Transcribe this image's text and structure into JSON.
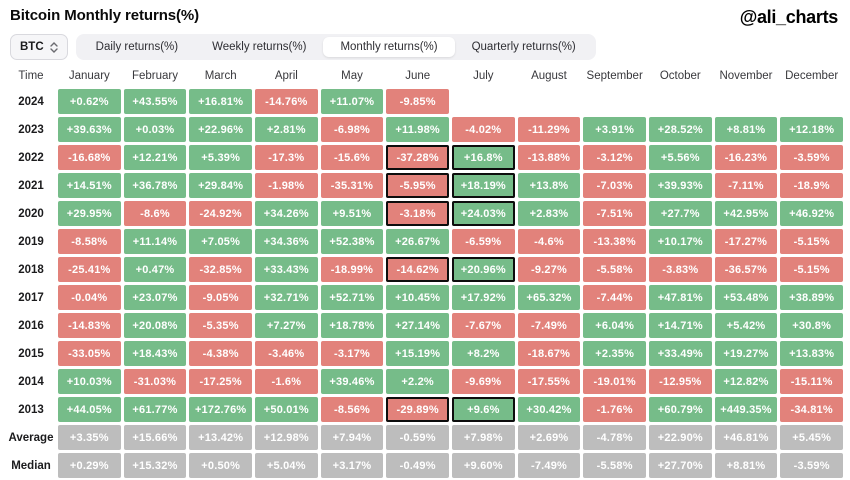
{
  "header": {
    "title": "Bitcoin Monthly returns(%)",
    "handle": "@ali_charts"
  },
  "controls": {
    "asset_selector": {
      "label": "BTC"
    },
    "tabs": [
      {
        "label": "Daily returns(%)",
        "active": false
      },
      {
        "label": "Weekly returns(%)",
        "active": false
      },
      {
        "label": "Monthly returns(%)",
        "active": true
      },
      {
        "label": "Quarterly returns(%)",
        "active": false
      }
    ]
  },
  "chart_data": {
    "type": "heatmap",
    "title": "Bitcoin Monthly returns(%)",
    "columns": [
      "Time",
      "January",
      "February",
      "March",
      "April",
      "May",
      "June",
      "July",
      "August",
      "September",
      "October",
      "November",
      "December"
    ],
    "rows": [
      {
        "label": "2024",
        "kind": "year",
        "values": [
          "+0.62%",
          "+43.55%",
          "+16.81%",
          "-14.76%",
          "+11.07%",
          "-9.85%",
          "",
          "",
          "",
          "",
          "",
          ""
        ]
      },
      {
        "label": "2023",
        "kind": "year",
        "values": [
          "+39.63%",
          "+0.03%",
          "+22.96%",
          "+2.81%",
          "-6.98%",
          "+11.98%",
          "-4.02%",
          "-11.29%",
          "+3.91%",
          "+28.52%",
          "+8.81%",
          "+12.18%"
        ]
      },
      {
        "label": "2022",
        "kind": "year",
        "values": [
          "-16.68%",
          "+12.21%",
          "+5.39%",
          "-17.3%",
          "-15.6%",
          "-37.28%",
          "+16.8%",
          "-13.88%",
          "-3.12%",
          "+5.56%",
          "-16.23%",
          "-3.59%"
        ]
      },
      {
        "label": "2021",
        "kind": "year",
        "values": [
          "+14.51%",
          "+36.78%",
          "+29.84%",
          "-1.98%",
          "-35.31%",
          "-5.95%",
          "+18.19%",
          "+13.8%",
          "-7.03%",
          "+39.93%",
          "-7.11%",
          "-18.9%"
        ]
      },
      {
        "label": "2020",
        "kind": "year",
        "values": [
          "+29.95%",
          "-8.6%",
          "-24.92%",
          "+34.26%",
          "+9.51%",
          "-3.18%",
          "+24.03%",
          "+2.83%",
          "-7.51%",
          "+27.7%",
          "+42.95%",
          "+46.92%"
        ]
      },
      {
        "label": "2019",
        "kind": "year",
        "values": [
          "-8.58%",
          "+11.14%",
          "+7.05%",
          "+34.36%",
          "+52.38%",
          "+26.67%",
          "-6.59%",
          "-4.6%",
          "-13.38%",
          "+10.17%",
          "-17.27%",
          "-5.15%"
        ]
      },
      {
        "label": "2018",
        "kind": "year",
        "values": [
          "-25.41%",
          "+0.47%",
          "-32.85%",
          "+33.43%",
          "-18.99%",
          "-14.62%",
          "+20.96%",
          "-9.27%",
          "-5.58%",
          "-3.83%",
          "-36.57%",
          "-5.15%"
        ]
      },
      {
        "label": "2017",
        "kind": "year",
        "values": [
          "-0.04%",
          "+23.07%",
          "-9.05%",
          "+32.71%",
          "+52.71%",
          "+10.45%",
          "+17.92%",
          "+65.32%",
          "-7.44%",
          "+47.81%",
          "+53.48%",
          "+38.89%"
        ]
      },
      {
        "label": "2016",
        "kind": "year",
        "values": [
          "-14.83%",
          "+20.08%",
          "-5.35%",
          "+7.27%",
          "+18.78%",
          "+27.14%",
          "-7.67%",
          "-7.49%",
          "+6.04%",
          "+14.71%",
          "+5.42%",
          "+30.8%"
        ]
      },
      {
        "label": "2015",
        "kind": "year",
        "values": [
          "-33.05%",
          "+18.43%",
          "-4.38%",
          "-3.46%",
          "-3.17%",
          "+15.19%",
          "+8.2%",
          "-18.67%",
          "+2.35%",
          "+33.49%",
          "+19.27%",
          "+13.83%"
        ]
      },
      {
        "label": "2014",
        "kind": "year",
        "values": [
          "+10.03%",
          "-31.03%",
          "-17.25%",
          "-1.6%",
          "+39.46%",
          "+2.2%",
          "-9.69%",
          "-17.55%",
          "-19.01%",
          "-12.95%",
          "+12.82%",
          "-15.11%"
        ]
      },
      {
        "label": "2013",
        "kind": "year",
        "values": [
          "+44.05%",
          "+61.77%",
          "+172.76%",
          "+50.01%",
          "-8.56%",
          "-29.89%",
          "+9.6%",
          "+30.42%",
          "-1.76%",
          "+60.79%",
          "+449.35%",
          "-34.81%"
        ]
      },
      {
        "label": "Average",
        "kind": "summary",
        "values": [
          "+3.35%",
          "+15.66%",
          "+13.42%",
          "+12.98%",
          "+7.94%",
          "-0.59%",
          "+7.98%",
          "+2.69%",
          "-4.78%",
          "+22.90%",
          "+46.81%",
          "+5.45%"
        ]
      },
      {
        "label": "Median",
        "kind": "summary",
        "values": [
          "+0.29%",
          "+15.32%",
          "+0.50%",
          "+5.04%",
          "+3.17%",
          "-0.49%",
          "+9.60%",
          "-7.49%",
          "-5.58%",
          "+27.70%",
          "+8.81%",
          "-3.59%"
        ]
      }
    ],
    "highlighted": [
      {
        "row": "2022",
        "columns": [
          "June",
          "July"
        ]
      },
      {
        "row": "2021",
        "columns": [
          "June",
          "July"
        ]
      },
      {
        "row": "2020",
        "columns": [
          "June",
          "July"
        ]
      },
      {
        "row": "2018",
        "columns": [
          "June",
          "July"
        ]
      },
      {
        "row": "2013",
        "columns": [
          "June",
          "July"
        ]
      }
    ],
    "colors": {
      "positive": "#76bc89",
      "negative": "#e2827b",
      "summary": "#bdbdbd",
      "highlight_border": "#0d0d0d"
    },
    "legend_position": "none",
    "grid": false
  }
}
